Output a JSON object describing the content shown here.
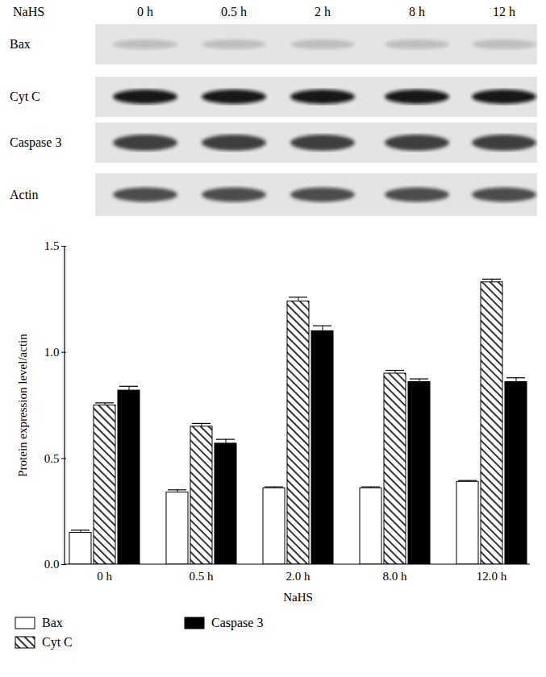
{
  "blot": {
    "treatment": "NaHS",
    "lanes": [
      "0 h",
      "0.5 h",
      "2 h",
      "8 h",
      "12 h"
    ],
    "proteins": [
      "Bax",
      "Cyt C",
      "Caspase 3",
      "Actin"
    ]
  },
  "chart_data": {
    "type": "bar",
    "categories": [
      "0 h",
      "0.5 h",
      "2.0 h",
      "8.0 h",
      "12.0 h"
    ],
    "x_label": "NaHS",
    "y_label": "Protein expression level/actin",
    "series": [
      {
        "name": "Bax",
        "color": "#ffffff",
        "values": [
          0.15,
          0.34,
          0.36,
          0.36,
          0.39
        ],
        "errors": [
          0.012,
          0.012,
          0.006,
          0.006,
          0.006
        ]
      },
      {
        "name": "Cyt C",
        "color": "#000000",
        "values": [
          0.75,
          0.65,
          1.24,
          0.9,
          1.33
        ],
        "errors": [
          0.012,
          0.015,
          0.02,
          0.015,
          0.015
        ]
      },
      {
        "name": "Caspase 3",
        "color": "#000000",
        "values": [
          0.82,
          0.57,
          1.1,
          0.86,
          0.86
        ],
        "errors": [
          0.02,
          0.02,
          0.025,
          0.015,
          0.02
        ]
      }
    ],
    "ylim": [
      0,
      1.5
    ],
    "yticks": [
      {
        "value": 0,
        "label": "0.0"
      },
      {
        "value": 0.5,
        "label": "0.5"
      },
      {
        "value": 1.0,
        "label": "1.0"
      },
      {
        "value": 1.5,
        "label": "1.5"
      }
    ],
    "grid": false,
    "legend": "bottom"
  }
}
